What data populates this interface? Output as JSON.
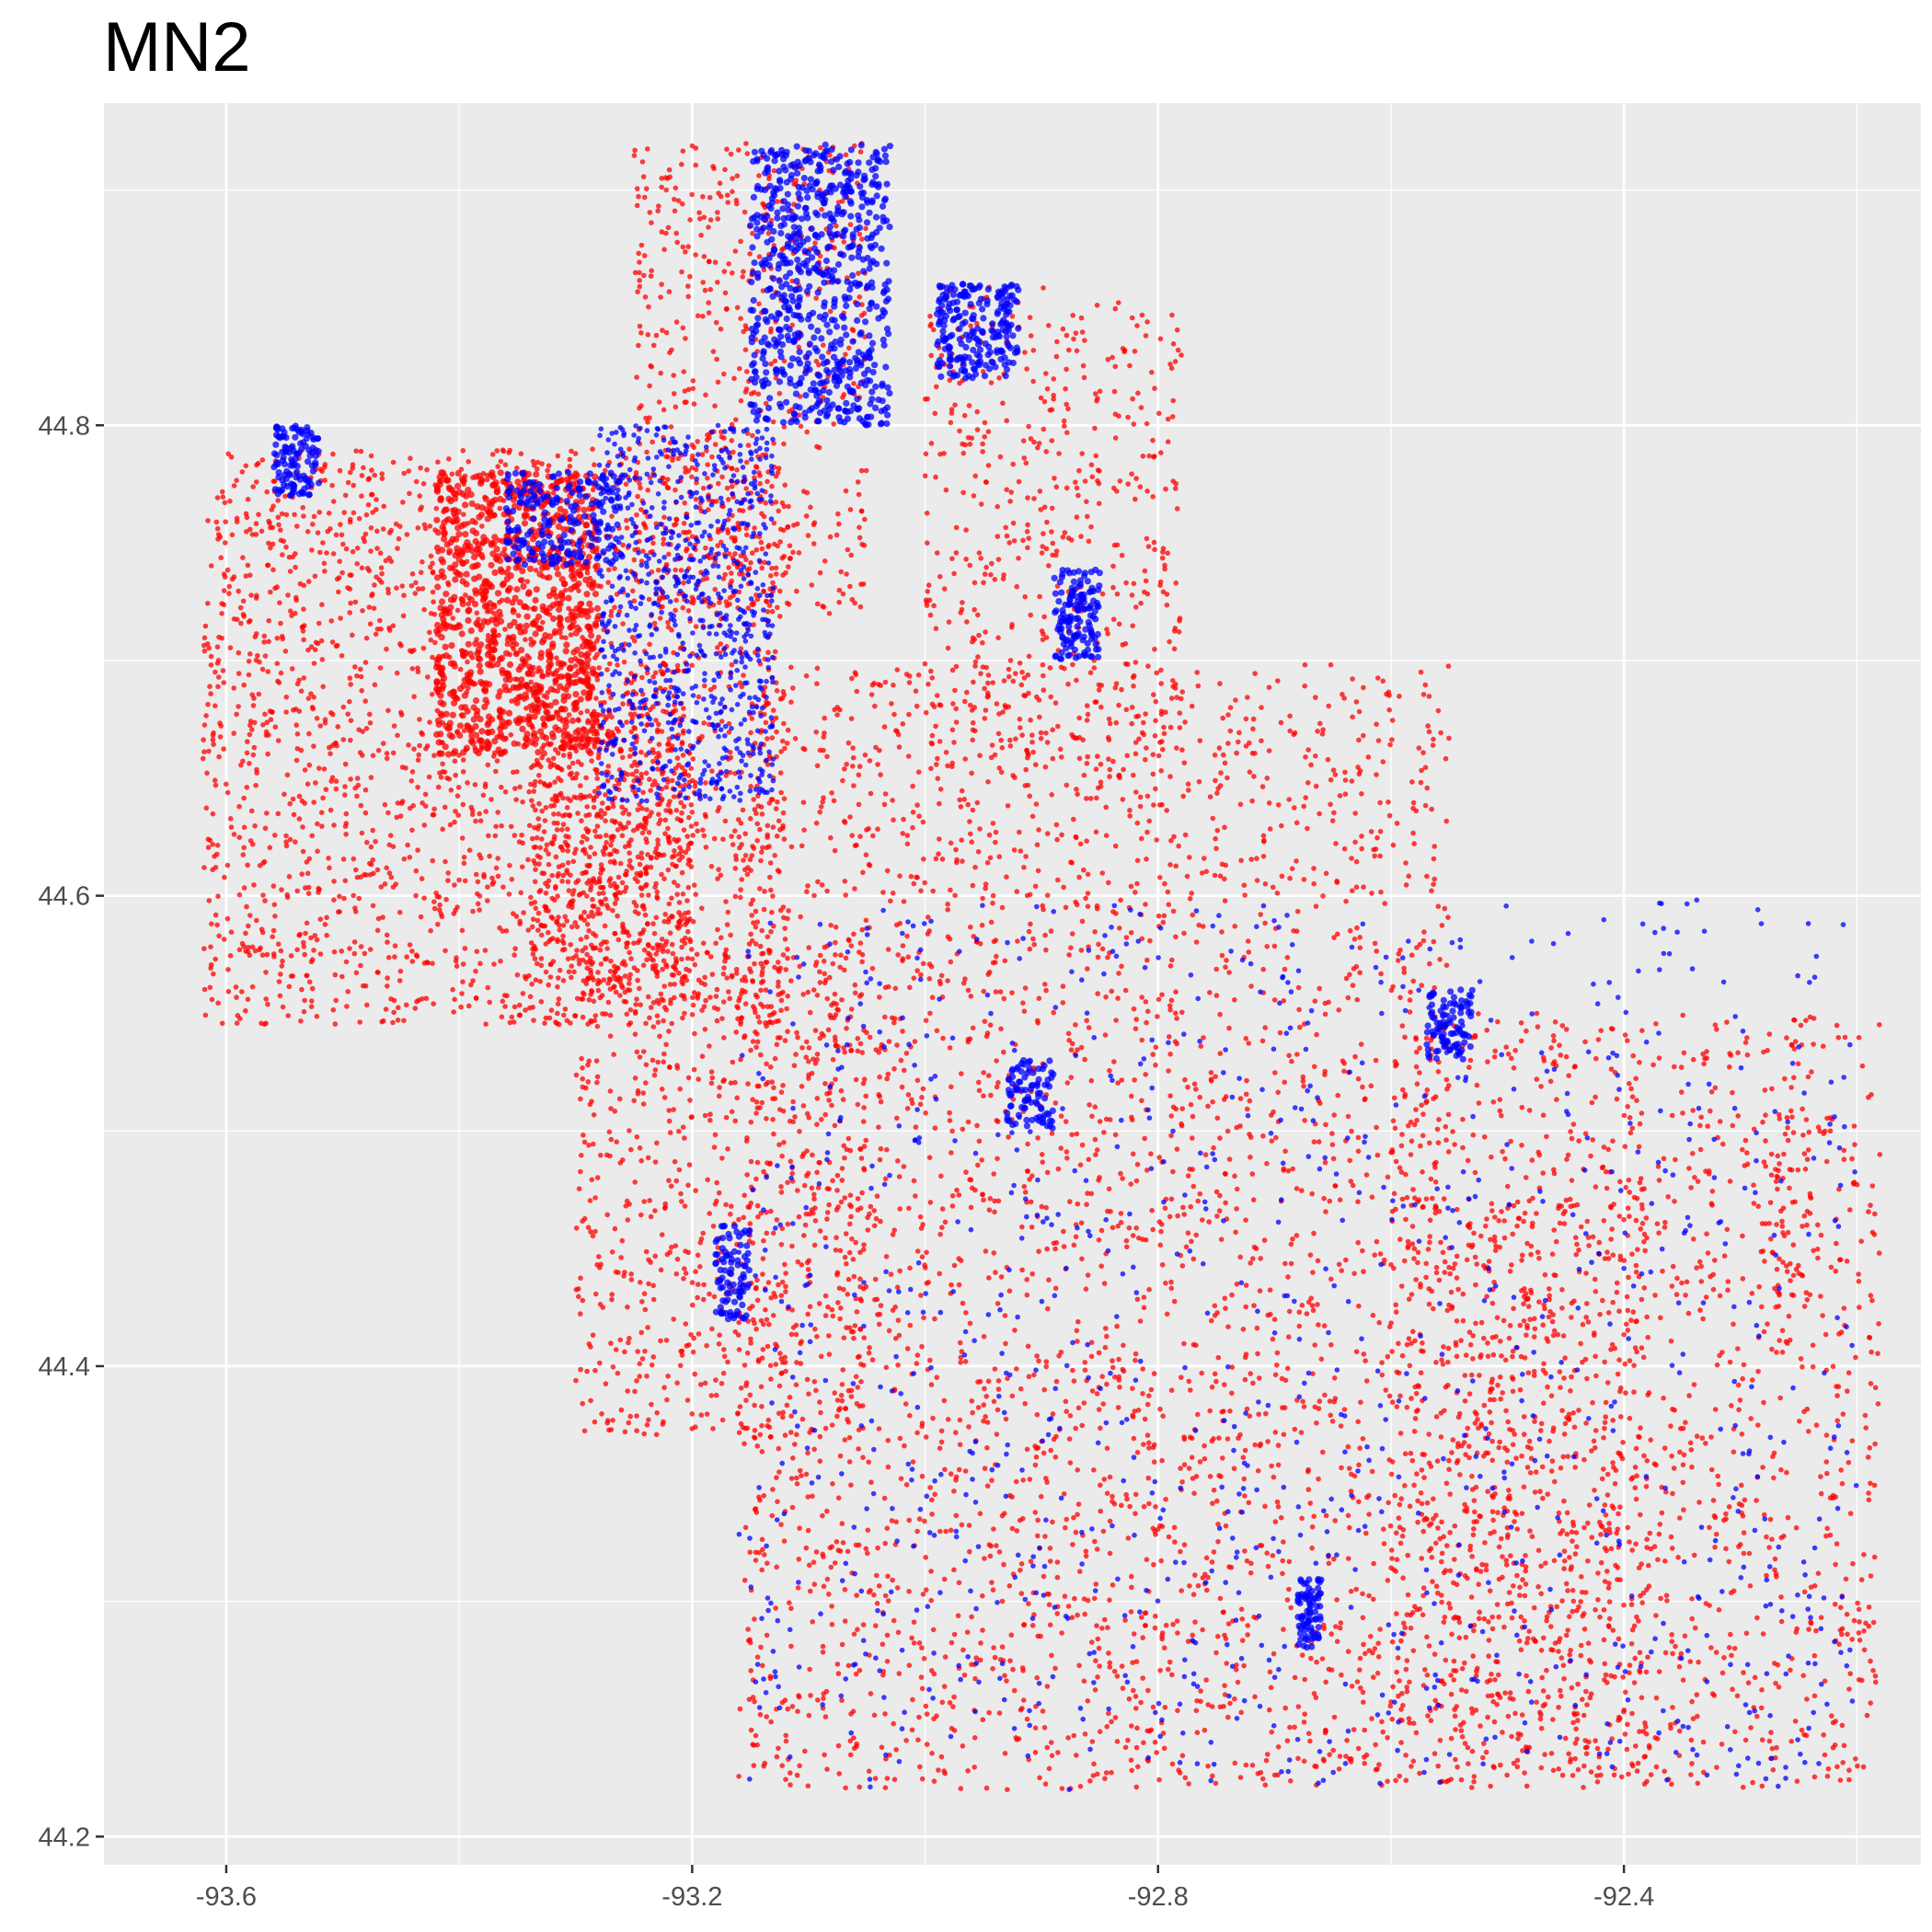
{
  "chart_data": {
    "type": "scatter",
    "title": "MN2",
    "xlabel": "",
    "ylabel": "",
    "xlim": [
      -93.705,
      -92.145
    ],
    "ylim": [
      44.188,
      44.937
    ],
    "x_ticks": [
      -93.6,
      -93.2,
      -92.8,
      -92.4
    ],
    "x_tick_labels": [
      "-93.6",
      "-93.2",
      "-92.8",
      "-92.4"
    ],
    "y_ticks": [
      44.2,
      44.4,
      44.6,
      44.8
    ],
    "y_tick_labels": [
      "44.2",
      "44.4",
      "44.6",
      "44.8"
    ],
    "grid": true,
    "legend": "none",
    "panel_color": "#ebebeb",
    "series": [
      {
        "color": "#ff0000",
        "clusters": [
          {
            "x": [
              -93.62,
              -93.12
            ],
            "y": [
              44.545,
              44.79
            ],
            "n": 2200
          },
          {
            "x": [
              -93.42,
              -93.28
            ],
            "y": [
              44.66,
              44.78
            ],
            "n": 900
          },
          {
            "x": [
              -93.34,
              -93.2
            ],
            "y": [
              44.56,
              44.7
            ],
            "n": 700
          },
          {
            "x": [
              -93.3,
              -93.05
            ],
            "y": [
              44.37,
              44.58
            ],
            "n": 700
          },
          {
            "x": [
              -93.15,
              -92.55
            ],
            "y": [
              44.47,
              44.7
            ],
            "n": 1400
          },
          {
            "x": [
              -93.16,
              -92.38
            ],
            "y": [
              44.22,
              44.47
            ],
            "n": 2100
          },
          {
            "x": [
              -92.6,
              -92.18
            ],
            "y": [
              44.22,
              44.55
            ],
            "n": 1300
          },
          {
            "x": [
              -93.25,
              -93.05
            ],
            "y": [
              44.72,
              44.92
            ],
            "n": 600
          },
          {
            "x": [
              -93.0,
              -92.78
            ],
            "y": [
              44.65,
              44.86
            ],
            "n": 500
          },
          {
            "x": [
              -92.28,
              -92.24
            ],
            "y": [
              44.43,
              44.51
            ],
            "n": 60
          }
        ]
      },
      {
        "color": "#0000ff",
        "clusters": [
          {
            "x": [
              -93.15,
              -93.03
            ],
            "y": [
              44.8,
              44.92
            ],
            "n": 700
          },
          {
            "x": [
              -93.28,
              -93.13
            ],
            "y": [
              44.64,
              44.8
            ],
            "n": 800
          },
          {
            "x": [
              -93.36,
              -93.26
            ],
            "y": [
              44.74,
              44.78
            ],
            "n": 200
          },
          {
            "x": [
              -92.99,
              -92.92
            ],
            "y": [
              44.82,
              44.86
            ],
            "n": 220
          },
          {
            "x": [
              -93.56,
              -93.52
            ],
            "y": [
              44.77,
              44.8
            ],
            "n": 120
          },
          {
            "x": [
              -92.89,
              -92.85
            ],
            "y": [
              44.7,
              44.74
            ],
            "n": 140
          },
          {
            "x": [
              -92.93,
              -92.89
            ],
            "y": [
              44.5,
              44.53
            ],
            "n": 90
          },
          {
            "x": [
              -93.18,
              -93.15
            ],
            "y": [
              44.42,
              44.46
            ],
            "n": 90
          },
          {
            "x": [
              -92.57,
              -92.53
            ],
            "y": [
              44.53,
              44.56
            ],
            "n": 100
          },
          {
            "x": [
              -92.68,
              -92.66
            ],
            "y": [
              44.28,
              44.31
            ],
            "n": 80
          },
          {
            "x": [
              -93.16,
              -92.2
            ],
            "y": [
              44.22,
              44.6
            ],
            "n": 1000
          }
        ]
      }
    ]
  }
}
